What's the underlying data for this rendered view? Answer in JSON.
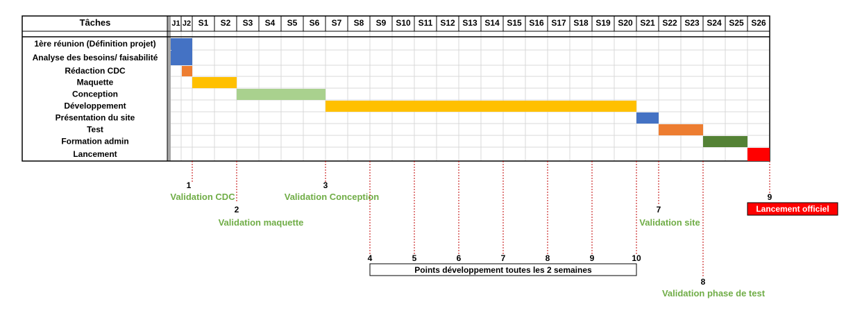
{
  "header": {
    "tasks_label": "Tâches",
    "periods": [
      "J1",
      "J2",
      "S1",
      "S2",
      "S3",
      "S4",
      "S5",
      "S6",
      "S7",
      "S8",
      "S9",
      "S10",
      "S11",
      "S12",
      "S13",
      "S14",
      "S15",
      "S16",
      "S17",
      "S18",
      "S19",
      "S20",
      "S21",
      "S22",
      "S23",
      "S24",
      "S25",
      "S26"
    ]
  },
  "tasks": [
    {
      "name": "1ère réunion (Définition projet)",
      "start": "J1",
      "end": "J2",
      "color": "#4472C4"
    },
    {
      "name": "Analyse des besoins/ faisabilité",
      "start": "J1",
      "end": "J2",
      "color": "#4472C4"
    },
    {
      "name": "Rédaction CDC",
      "start": "J2",
      "end": "J2",
      "color": "#ED7D31"
    },
    {
      "name": "Maquette",
      "start": "S1",
      "end": "S2",
      "color": "#FFC000"
    },
    {
      "name": "Conception",
      "start": "S3",
      "end": "S6",
      "color": "#A9D18E"
    },
    {
      "name": "Développement",
      "start": "S7",
      "end": "S20",
      "color": "#FFC000"
    },
    {
      "name": "Présentation du site",
      "start": "S21",
      "end": "S21",
      "color": "#4472C4"
    },
    {
      "name": "Test",
      "start": "S22",
      "end": "S23",
      "color": "#ED7D31"
    },
    {
      "name": "Formation admin",
      "start": "S24",
      "end": "S25",
      "color": "#548235"
    },
    {
      "name": "Lancement",
      "start": "S26",
      "end": "S26",
      "color": "#FF0000"
    }
  ],
  "milestones": [
    {
      "number": "1",
      "label": "Validation CDC",
      "at": "end of J2"
    },
    {
      "number": "2",
      "label": "Validation maquette",
      "at": "end of S2"
    },
    {
      "number": "3",
      "label": "Validation Conception",
      "at": "end of S6"
    },
    {
      "number": "4",
      "label": "",
      "at": "end of S8"
    },
    {
      "number": "5",
      "label": "",
      "at": "end of S10"
    },
    {
      "number": "6",
      "label": "",
      "at": "end of S12"
    },
    {
      "number": "7",
      "label": "Validation site",
      "at": "end of S21"
    },
    {
      "number": "8",
      "label": "Validation phase de test",
      "at": "end of S23"
    },
    {
      "number": "9",
      "label": "Lancement officiel",
      "at": "end of S26"
    },
    {
      "number": "10",
      "label": "",
      "at": "end of S20"
    },
    {
      "number": "7",
      "label": "",
      "at": "end of S14"
    },
    {
      "number": "8",
      "label": "",
      "at": "end of S16"
    },
    {
      "number": "9",
      "label": "",
      "at": "end of S18"
    }
  ],
  "dev_points_label": "Points développement toutes les 2 semaines",
  "colors": {
    "milestone_text": "#70AD47",
    "dotted_line": "#C00000",
    "grid": "#D9D9D9",
    "border": "#000000",
    "launch_box": "#FF0000"
  }
}
